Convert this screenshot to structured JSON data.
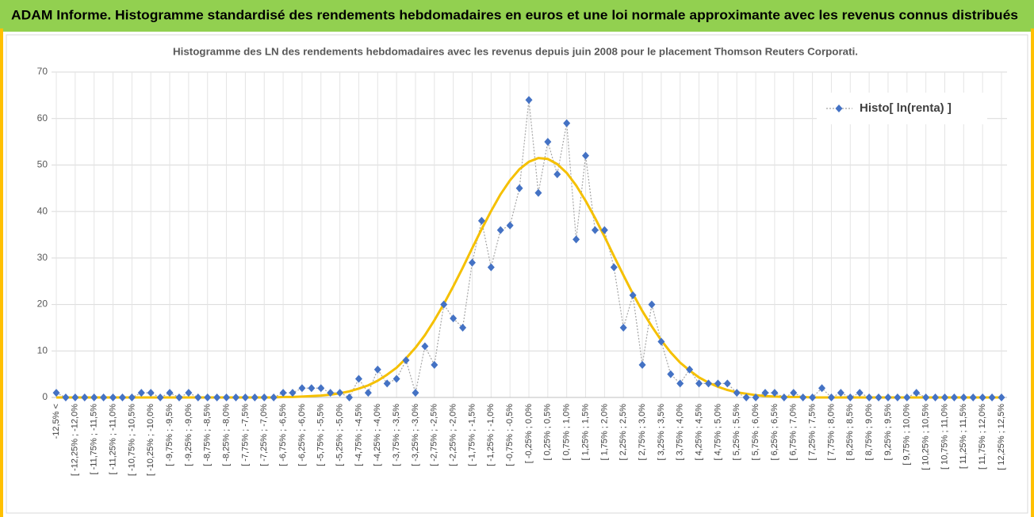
{
  "header": {
    "title": "ADAM Informe. Histogramme standardisé des rendements hebdomadaires en euros et une loi normale approximante avec les revenus connus distribués"
  },
  "chart_data": {
    "type": "line",
    "title": "Histogramme des LN des rendements hebdomadaires avec les revenus depuis juin 2008  pour le placement Thomson Reuters Corporati.",
    "categories": [
      "-12,5% <",
      null,
      "[ -12,25% ; -12,0%",
      null,
      "[ -11,75% ; -11,5%",
      null,
      "[ -11,25% ; -11,0%",
      null,
      "[ -10,75% ; -10,5%",
      null,
      "[ -10,25% ; -10,0%",
      null,
      "[ -9,75% ; -9,5%",
      null,
      "[ -9,25% ; -9,0%",
      null,
      "[ -8,75% ; -8,5%",
      null,
      "[ -8,25% ; -8,0%",
      null,
      "[ -7,75% ; -7,5%",
      null,
      "[ -7,25% ; -7,0%",
      null,
      "[ -6,75% ; -6,5%",
      null,
      "[ -6,25% ; -6,0%",
      null,
      "[ -5,75% ; -5,5%",
      null,
      "[ -5,25% ; -5,0%",
      null,
      "[ -4,75% ; -4,5%",
      null,
      "[ -4,25% ; -4,0%",
      null,
      "[ -3,75% ; -3,5%",
      null,
      "[ -3,25% ; -3,0%",
      null,
      "[ -2,75% ; -2,5%",
      null,
      "[ -2,25% ; -2,0%",
      null,
      "[ -1,75% ; -1,5%",
      null,
      "[ -1,25% ; -1,0%",
      null,
      "[ -0,75% ; -0,5%",
      null,
      "[ -0,25% ; 0,0%",
      null,
      "[ 0,25% ; 0,5%",
      null,
      "[ 0,75% ; 1,0%",
      null,
      "[ 1,25% ; 1,5%",
      null,
      "[ 1,75% ; 2,0%",
      null,
      "[ 2,25% ; 2,5%",
      null,
      "[ 2,75% ; 3,0%",
      null,
      "[ 3,25% ; 3,5%",
      null,
      "[ 3,75% ; 4,0%",
      null,
      "[ 4,25% ; 4,5%",
      null,
      "[ 4,75% ; 5,0%",
      null,
      "[ 5,25% ; 5,5%",
      null,
      "[ 5,75% ; 6,0%",
      null,
      "[ 6,25% ; 6,5%",
      null,
      "[ 6,75% ; 7,0%",
      null,
      "[ 7,25% ; 7,5%",
      null,
      "[ 7,75% ; 8,0%",
      null,
      "[ 8,25% ; 8,5%",
      null,
      "[ 8,75% ; 9,0%",
      null,
      "[ 9,25% ; 9,5%",
      null,
      "[ 9,75% ; 10,0%",
      null,
      "[ 10,25% ; 10,5%",
      null,
      "[ 10,75% ; 11,0%",
      null,
      "[ 11,25% ; 11,5%",
      null,
      "[ 11,75% ; 12,0%",
      null,
      "[ 12,25% ; 12,5%"
    ],
    "series": [
      {
        "name": "Histo[ ln(renta) ]",
        "color": "#4472c4",
        "values": [
          1,
          0,
          0,
          0,
          0,
          0,
          0,
          0,
          0,
          1,
          1,
          0,
          1,
          0,
          1,
          0,
          0,
          0,
          0,
          0,
          0,
          0,
          0,
          0,
          1,
          1,
          2,
          2,
          2,
          1,
          1,
          0,
          4,
          1,
          6,
          3,
          4,
          8,
          1,
          11,
          7,
          20,
          17,
          15,
          29,
          38,
          28,
          36,
          37,
          45,
          64,
          44,
          55,
          48,
          59,
          34,
          52,
          36,
          36,
          28,
          15,
          22,
          7,
          20,
          12,
          5,
          3,
          6,
          3,
          3,
          3,
          3,
          1,
          0,
          0,
          1,
          1,
          0,
          1,
          0,
          0,
          2,
          0,
          1,
          0,
          1,
          0,
          0,
          0,
          0,
          0,
          1,
          0,
          0,
          0,
          0,
          0,
          0,
          0,
          0,
          0
        ]
      },
      {
        "color": "#f5c000",
        "values": [
          0,
          0,
          0,
          0,
          0,
          0,
          0,
          0,
          0,
          0,
          0,
          0,
          0,
          0,
          0,
          0,
          0,
          0,
          0,
          0,
          0,
          0,
          0,
          0,
          0.1,
          0.1,
          0.2,
          0.3,
          0.4,
          0.6,
          0.9,
          1.3,
          1.9,
          2.6,
          3.6,
          4.9,
          6.4,
          8.4,
          10.7,
          13.4,
          16.6,
          20.1,
          23.9,
          27.9,
          32.1,
          36.2,
          40.1,
          43.7,
          46.7,
          49.1,
          50.7,
          51.5,
          51.3,
          50.2,
          48.3,
          45.6,
          42.3,
          38.6,
          34.6,
          30.4,
          26.3,
          22.3,
          18.6,
          15.3,
          12.3,
          9.7,
          7.5,
          5.8,
          4.3,
          3.2,
          2.3,
          1.6,
          1.1,
          0.8,
          0.5,
          0.3,
          0.2,
          0.1,
          0.1,
          0.1,
          0,
          0,
          0,
          0,
          0,
          0,
          0,
          0,
          0,
          0,
          0,
          0,
          0,
          0,
          0,
          0,
          0,
          0,
          0,
          0,
          0
        ]
      }
    ],
    "ylim": [
      0,
      70
    ],
    "yticks": [
      0,
      10,
      20,
      30,
      40,
      50,
      60,
      70
    ],
    "grid": true,
    "legend": "top-right"
  }
}
